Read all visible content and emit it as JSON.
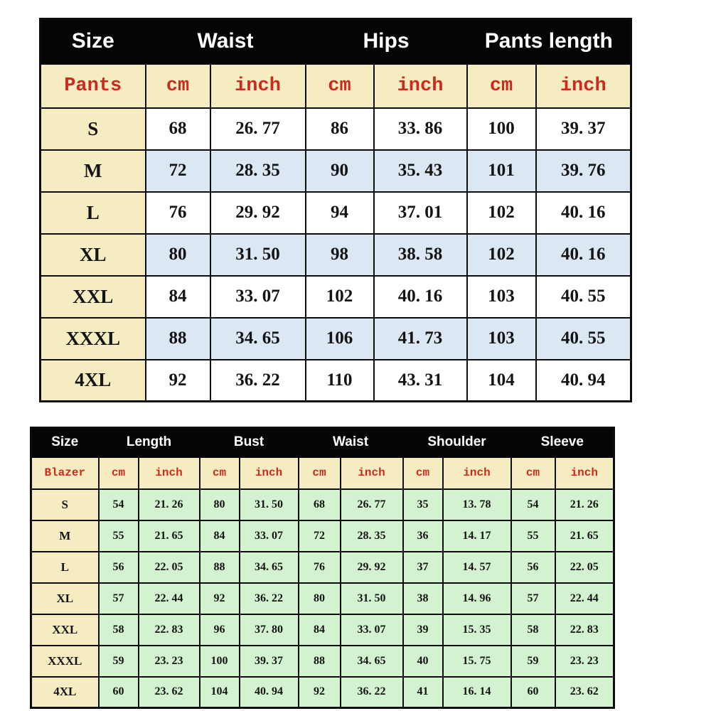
{
  "colors": {
    "page_background": "#ffffff",
    "header_bg": "#050505",
    "header_text": "#ffffff",
    "cream_bg": "#f5ecc2",
    "blue_stripe_bg": "#dbe8f4",
    "green_row_bg": "#d3f2d0",
    "red_unit_text": "#cc2a1d",
    "data_text": "#141414",
    "border": "#0d0d0d"
  },
  "chart_data": [
    {
      "type": "table",
      "title": "Pants size chart",
      "column_groups": {
        "size": "Size",
        "waist": "Waist",
        "hips": "Hips",
        "pants_length": "Pants length"
      },
      "subheader": {
        "label": "Pants",
        "units": [
          "cm",
          "inch",
          "cm",
          "inch",
          "cm",
          "inch"
        ]
      },
      "rows": [
        [
          "S",
          "68",
          "26. 77",
          "86",
          "33. 86",
          "100",
          "39. 37"
        ],
        [
          "M",
          "72",
          "28. 35",
          "90",
          "35. 43",
          "101",
          "39. 76"
        ],
        [
          "L",
          "76",
          "29. 92",
          "94",
          "37. 01",
          "102",
          "40. 16"
        ],
        [
          "XL",
          "80",
          "31. 50",
          "98",
          "38. 58",
          "102",
          "40. 16"
        ],
        [
          "XXL",
          "84",
          "33. 07",
          "102",
          "40. 16",
          "103",
          "40. 55"
        ],
        [
          "XXXL",
          "88",
          "34. 65",
          "106",
          "41. 73",
          "103",
          "40. 55"
        ],
        [
          "4XL",
          "92",
          "36. 22",
          "110",
          "43. 31",
          "104",
          "40. 94"
        ]
      ],
      "layout_hints": {
        "row_striping": "alternate white / light-blue",
        "size_column_bg": "cream",
        "header_bg": "black"
      }
    },
    {
      "type": "table",
      "title": "Blazer size chart",
      "column_groups": {
        "size": "Size",
        "length": "Length",
        "bust": "Bust",
        "waist": "Waist",
        "shoulder": "Shoulder",
        "sleeve": "Sleeve"
      },
      "subheader": {
        "label": "Blazer",
        "units": [
          "cm",
          "inch",
          "cm",
          "inch",
          "cm",
          "inch",
          "cm",
          "inch",
          "cm",
          "inch"
        ]
      },
      "rows": [
        [
          "S",
          "54",
          "21. 26",
          "80",
          "31. 50",
          "68",
          "26. 77",
          "35",
          "13. 78",
          "54",
          "21. 26"
        ],
        [
          "M",
          "55",
          "21. 65",
          "84",
          "33. 07",
          "72",
          "28. 35",
          "36",
          "14. 17",
          "55",
          "21. 65"
        ],
        [
          "L",
          "56",
          "22. 05",
          "88",
          "34. 65",
          "76",
          "29. 92",
          "37",
          "14. 57",
          "56",
          "22. 05"
        ],
        [
          "XL",
          "57",
          "22. 44",
          "92",
          "36. 22",
          "80",
          "31. 50",
          "38",
          "14. 96",
          "57",
          "22. 44"
        ],
        [
          "XXL",
          "58",
          "22. 83",
          "96",
          "37. 80",
          "84",
          "33. 07",
          "39",
          "15. 35",
          "58",
          "22. 83"
        ],
        [
          "XXXL",
          "59",
          "23. 23",
          "100",
          "39. 37",
          "88",
          "34. 65",
          "40",
          "15. 75",
          "59",
          "23. 23"
        ],
        [
          "4XL",
          "60",
          "23. 62",
          "104",
          "40. 94",
          "92",
          "36. 22",
          "41",
          "16. 14",
          "60",
          "23. 62"
        ]
      ],
      "layout_hints": {
        "row_striping": "none (all light-green)",
        "size_column_bg": "cream",
        "header_bg": "black"
      }
    }
  ]
}
